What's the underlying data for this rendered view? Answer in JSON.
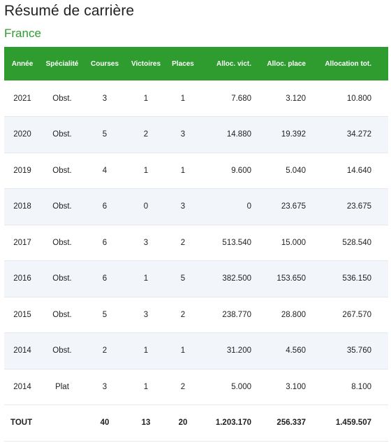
{
  "title": "Résumé de carrière",
  "section": "France",
  "headers": [
    "Année",
    "Spécialité",
    "Courses",
    "Victoires",
    "Places",
    "Alloc. vict.",
    "Alloc. place",
    "Allocation tot."
  ],
  "rows": [
    [
      "2021",
      "Obst.",
      "3",
      "1",
      "1",
      "7.680",
      "3.120",
      "10.800"
    ],
    [
      "2020",
      "Obst.",
      "5",
      "2",
      "3",
      "14.880",
      "19.392",
      "34.272"
    ],
    [
      "2019",
      "Obst.",
      "4",
      "1",
      "1",
      "9.600",
      "5.040",
      "14.640"
    ],
    [
      "2018",
      "Obst.",
      "6",
      "0",
      "3",
      "0",
      "23.675",
      "23.675"
    ],
    [
      "2017",
      "Obst.",
      "6",
      "3",
      "2",
      "513.540",
      "15.000",
      "528.540"
    ],
    [
      "2016",
      "Obst.",
      "6",
      "1",
      "5",
      "382.500",
      "153.650",
      "536.150"
    ],
    [
      "2015",
      "Obst.",
      "5",
      "3",
      "2",
      "238.770",
      "28.800",
      "267.570"
    ],
    [
      "2014",
      "Obst.",
      "2",
      "1",
      "1",
      "31.200",
      "4.560",
      "35.760"
    ],
    [
      "2014",
      "Plat",
      "3",
      "1",
      "2",
      "5.000",
      "3.100",
      "8.100"
    ]
  ],
  "total": [
    "TOUT",
    "",
    "40",
    "13",
    "20",
    "1.203.170",
    "256.337",
    "1.459.507"
  ],
  "colors": {
    "header_bg": "#2e9c2e",
    "section": "#2e9c2e",
    "row_alt": "#f2f6fa"
  }
}
